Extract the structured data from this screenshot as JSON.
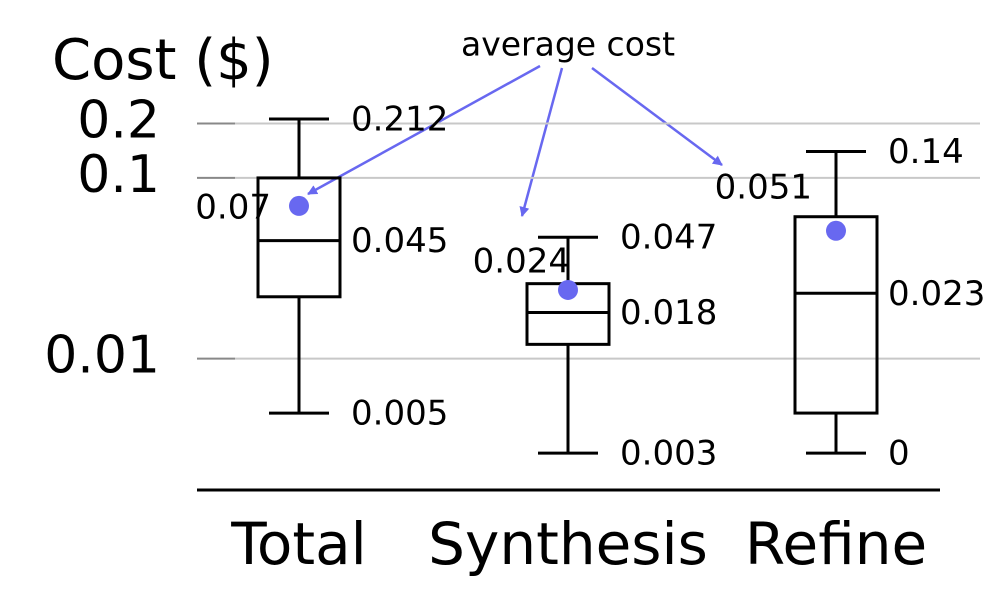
{
  "chart_data": {
    "type": "box",
    "title": "Cost ($)",
    "annotation": "average cost",
    "categories": [
      "Total",
      "Synthesis",
      "Refine"
    ],
    "boxes": [
      {
        "min": 0.005,
        "q1": 0.022,
        "median": 0.045,
        "q3": 0.1,
        "max": 0.212,
        "mean": 0.07
      },
      {
        "min": 0.003,
        "q1": 0.012,
        "median": 0.018,
        "q3": 0.026,
        "max": 0.047,
        "mean": 0.024
      },
      {
        "min": 0.003,
        "q1": 0.005,
        "median": 0.023,
        "q3": 0.061,
        "max": 0.14,
        "mean": 0.051,
        "value_labels": {
          "min": "0"
        }
      }
    ],
    "box_color": "#000000",
    "mean_color": "#6868f0",
    "log_y": true,
    "ylim": [
      0.002,
      0.25
    ],
    "yticks": [
      0.01,
      0.1,
      0.2
    ],
    "grid": true
  }
}
